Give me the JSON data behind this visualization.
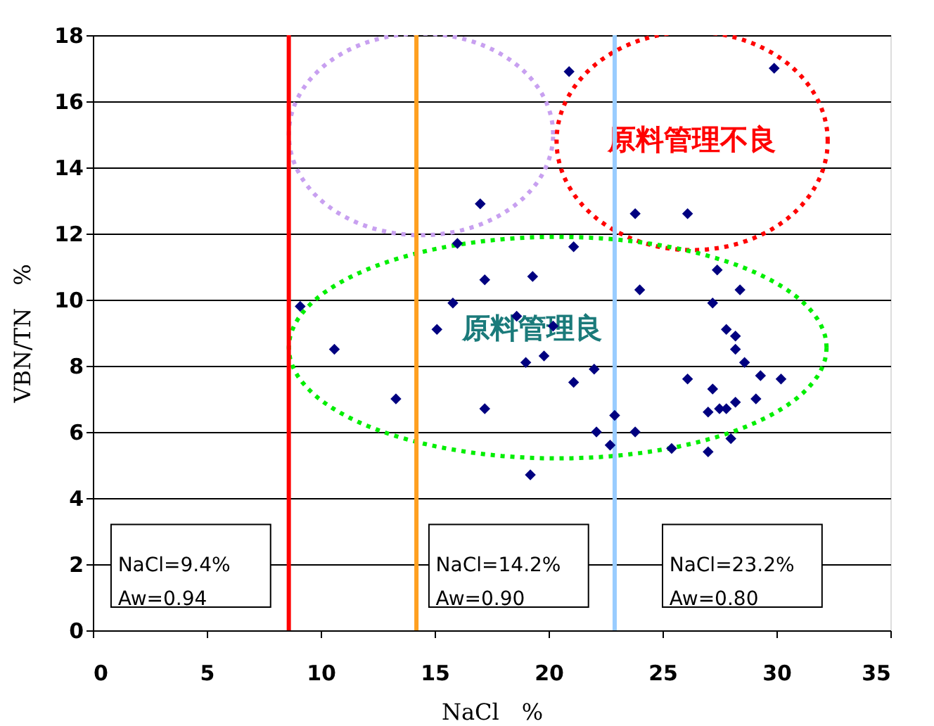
{
  "chart_data": {
    "type": "scatter",
    "xlabel": "NaCl　%",
    "ylabel": "VBN/TN　%",
    "x": [
      17.0,
      16.0,
      21.1,
      17.2,
      19.3,
      15.8,
      9.1,
      18.6,
      15.1,
      20.2,
      10.6,
      19.8,
      19.0,
      21.1,
      13.3,
      17.2,
      19.2,
      20.9,
      29.9,
      23.8,
      26.1,
      27.4,
      24.0,
      28.4,
      27.2,
      27.8,
      28.2,
      28.2,
      28.6,
      29.3,
      30.2,
      22.0,
      26.1,
      27.2,
      28.2,
      29.1,
      27.0,
      27.5,
      27.8,
      22.9,
      22.1,
      23.8,
      22.7,
      28.0,
      25.4,
      27.0
    ],
    "series": [
      {
        "color": "#000080",
        "values": [
          12.9,
          11.7,
          11.6,
          10.6,
          10.7,
          9.9,
          9.8,
          9.5,
          9.1,
          9.2,
          8.5,
          8.3,
          8.1,
          7.5,
          7.0,
          6.7,
          4.7,
          16.9,
          17.0,
          12.6,
          12.6,
          10.9,
          10.3,
          10.3,
          9.9,
          9.1,
          8.9,
          8.5,
          8.1,
          7.7,
          7.6,
          7.9,
          7.6,
          7.3,
          6.9,
          7.0,
          6.6,
          6.7,
          6.7,
          6.5,
          6.0,
          6.0,
          5.6,
          5.8,
          5.5,
          5.4
        ]
      }
    ],
    "marker": "diamond",
    "xlim": [
      0,
      35
    ],
    "xticks": [
      0,
      5,
      10,
      15,
      20,
      25,
      30,
      35
    ],
    "ylim": [
      0,
      18
    ],
    "yticks": [
      0,
      2,
      4,
      6,
      8,
      10,
      12,
      14,
      16,
      18
    ],
    "grid": "y",
    "ref_lines": [
      {
        "axis": "x",
        "value": 8.6,
        "color": "#ff0000"
      },
      {
        "axis": "x",
        "value": 14.2,
        "color": "#ffa020"
      },
      {
        "axis": "x",
        "value": 22.9,
        "color": "#99ccff"
      }
    ],
    "annotations": [
      "原料管理不良",
      "原料管理良",
      "NaCl=9.4%\nAw=0.94",
      "NaCl=14.2%\nAw=0.90",
      "NaCl=23.2%\nAw=0.80"
    ]
  }
}
